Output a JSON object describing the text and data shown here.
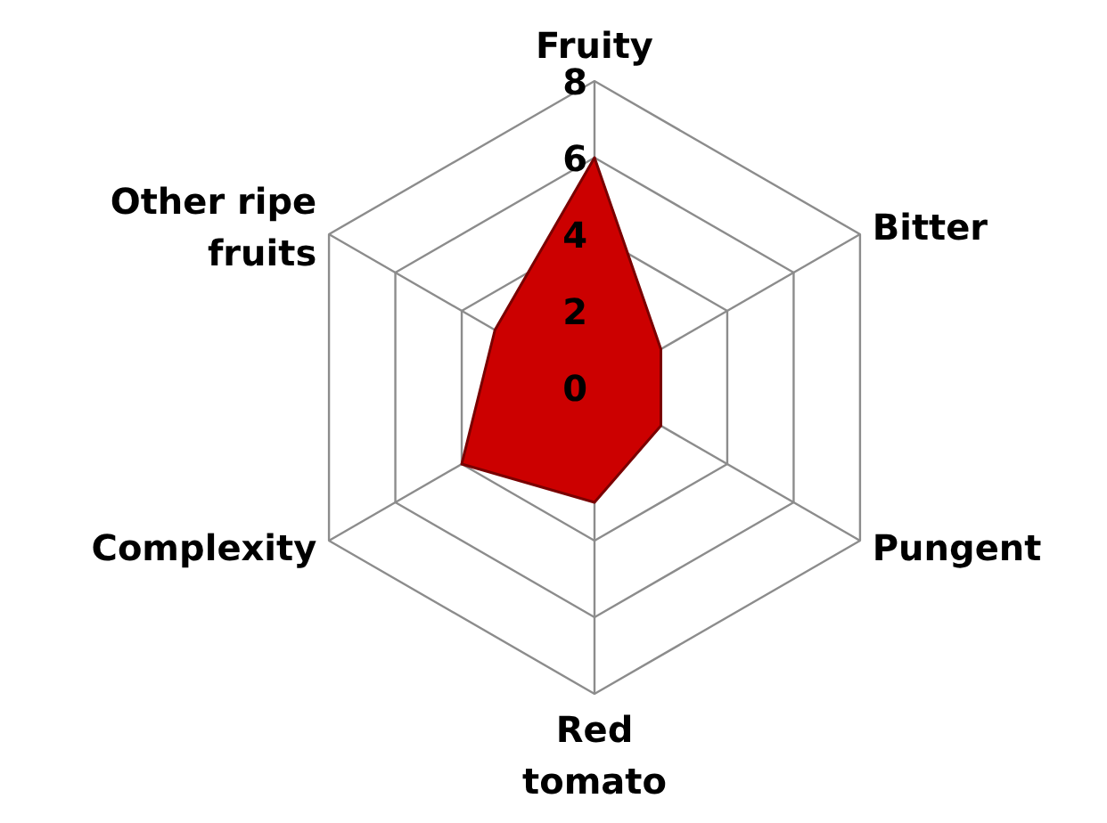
{
  "chart_data": {
    "type": "radar",
    "categories": [
      "Fruity",
      "Bitter",
      "Pungent",
      "Red tomato",
      "Complexity",
      "Other ripe fruits"
    ],
    "series": [
      {
        "color": "#cc0000",
        "values": [
          6,
          2,
          2,
          3,
          4,
          3
        ]
      }
    ],
    "ylim": [
      0,
      8
    ],
    "yticks": [
      0,
      2,
      4,
      6,
      8
    ],
    "grid": true
  }
}
